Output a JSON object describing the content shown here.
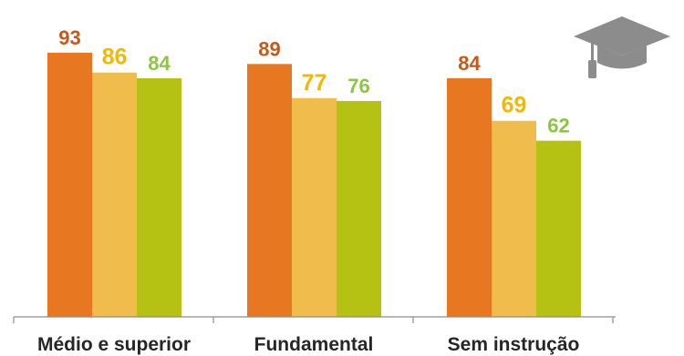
{
  "chart_data": {
    "type": "bar",
    "categories": [
      "Médio e superior",
      "Fundamental",
      "Sem instrução"
    ],
    "series": [
      {
        "values": [
          93,
          89,
          84
        ],
        "color": "#E87722",
        "label_color": "#C4591A"
      },
      {
        "values": [
          86,
          77,
          69
        ],
        "color": "#F0BC4B",
        "label_color": "#F5B800"
      },
      {
        "values": [
          84,
          76,
          62
        ],
        "color": "#B5C214",
        "label_color": "#8CC63F"
      }
    ],
    "ylim": [
      0,
      100
    ],
    "grid": false,
    "legend": "none",
    "axis_color": "#8C8C8C"
  },
  "decoration": {
    "icon": "graduation-cap-icon",
    "color": "#8C8C8C"
  }
}
